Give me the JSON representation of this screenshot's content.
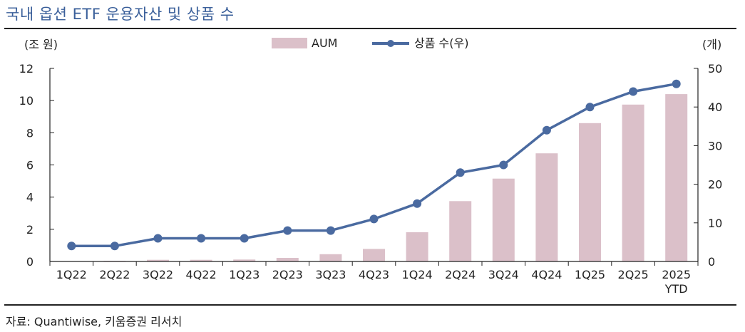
{
  "title": "국내 옵션 ETF 운용자산 및 상품 수",
  "source": "자료: Quantiwise, 키움증권 리서치",
  "colors": {
    "bar": "#dbc0c9",
    "line": "#4a6aa0",
    "title": "#3a5f9a"
  },
  "chart_data": {
    "type": "bar",
    "categories": [
      "1Q22",
      "2Q22",
      "3Q22",
      "4Q22",
      "1Q23",
      "2Q23",
      "3Q23",
      "4Q23",
      "1Q24",
      "2Q24",
      "3Q24",
      "4Q24",
      "1Q25",
      "2Q25",
      "2025\nYTD"
    ],
    "series": [
      {
        "name": "AUM",
        "type": "bar",
        "axis": "left",
        "values": [
          0.02,
          0.04,
          0.1,
          0.1,
          0.12,
          0.22,
          0.45,
          0.78,
          1.82,
          3.75,
          5.15,
          6.72,
          8.6,
          9.75,
          10.4
        ]
      },
      {
        "name": "상품 수(우)",
        "type": "line",
        "axis": "right",
        "values": [
          4,
          4,
          6,
          6,
          6,
          8,
          8,
          11,
          15,
          23,
          25,
          34,
          40,
          44,
          46
        ]
      }
    ],
    "y_left": {
      "label": "(조 원)",
      "ylim": [
        0,
        12
      ],
      "ticks": [
        0,
        2,
        4,
        6,
        8,
        10,
        12
      ]
    },
    "y_right": {
      "label": "(개)",
      "ylim": [
        0,
        50
      ],
      "ticks": [
        0,
        10,
        20,
        30,
        40,
        50
      ]
    },
    "legend": "top-center",
    "grid": false
  }
}
